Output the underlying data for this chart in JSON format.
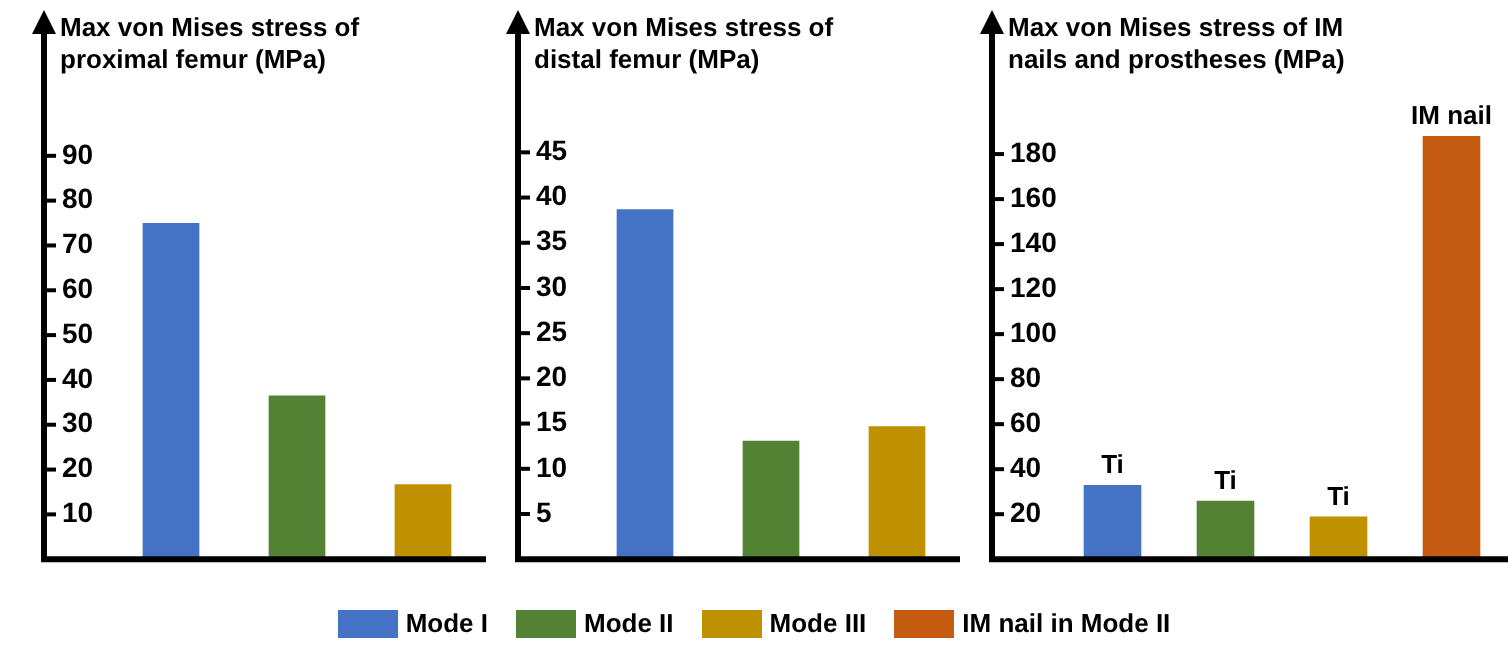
{
  "chart_data": [
    {
      "type": "bar",
      "title": "Max von Mises stress of proximal femur (MPa)",
      "categories": [
        null,
        null,
        null
      ],
      "values": [
        75,
        36.5,
        16.7
      ],
      "colors": [
        "#4472c4",
        "#548235",
        "#bf9000"
      ],
      "ylim": [
        0,
        117
      ],
      "yticks": [
        10,
        20,
        30,
        40,
        50,
        60,
        70,
        80,
        90
      ],
      "grid": false,
      "legend": false
    },
    {
      "type": "bar",
      "title": "Max von Mises stress of distal femur (MPa)",
      "categories": [
        null,
        null,
        null
      ],
      "values": [
        38.7,
        13.1,
        14.7
      ],
      "colors": [
        "#4472c4",
        "#548235",
        "#bf9000"
      ],
      "ylim": [
        0,
        58
      ],
      "yticks": [
        5,
        10,
        15,
        20,
        25,
        30,
        35,
        40,
        45
      ],
      "grid": false,
      "legend": false
    },
    {
      "type": "bar",
      "title": "Max von Mises stress of IM nails and prostheses (MPa)",
      "categories": [
        null,
        null,
        null,
        null
      ],
      "ylim": [
        0,
        233
      ],
      "yticks": [
        20,
        40,
        60,
        80,
        100,
        120,
        140,
        160,
        180
      ],
      "grid": false,
      "legend": "bottom",
      "series": [
        {
          "name": "Mode I",
          "color": "#4472c4",
          "values": [
            33,
            null,
            null,
            null
          ],
          "value_labels": [
            "Ti",
            null,
            null,
            null
          ]
        },
        {
          "name": "Mode II",
          "color": "#548235",
          "values": [
            null,
            26,
            null,
            null
          ],
          "value_labels": [
            null,
            "Ti",
            null,
            null
          ]
        },
        {
          "name": "Mode III",
          "color": "#bf9000",
          "values": [
            null,
            null,
            19,
            null
          ],
          "value_labels": [
            null,
            null,
            "Ti",
            null
          ]
        },
        {
          "name": "IM nail in Mode II",
          "color": "#c55a11",
          "values": [
            null,
            null,
            null,
            188
          ],
          "value_labels": [
            null,
            null,
            null,
            "IM nail"
          ]
        }
      ]
    }
  ]
}
